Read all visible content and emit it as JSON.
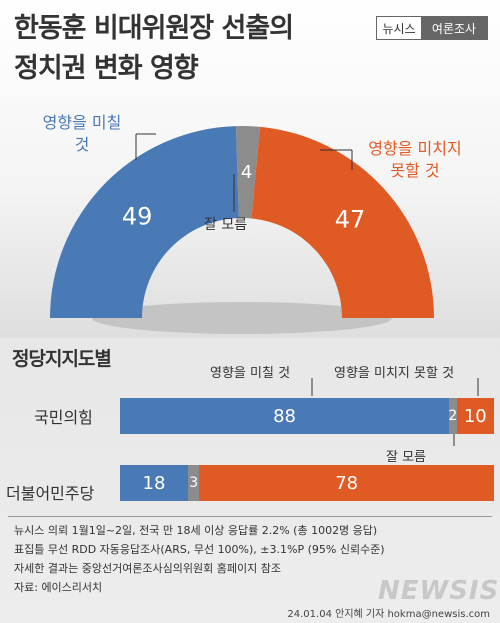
{
  "title": {
    "line1": "한동훈 비대위원장 선출의",
    "line2": "정치권 변화 영향"
  },
  "badge": {
    "left": "뉴시스",
    "right": "여론조사"
  },
  "colors": {
    "blue": "#4a7ab5",
    "orange": "#e05a24",
    "gray": "#8c8c8c"
  },
  "chart_data": [
    {
      "type": "pie",
      "categories": [
        "영향을 미칠 것",
        "잘 모름",
        "영향을 미치지 못할 것"
      ],
      "values": [
        49,
        4,
        47
      ],
      "labels": {
        "affect": "영향을 미칠 것",
        "unsure": "잘 모름",
        "noaffect": "영향을 미치지 못할 것"
      },
      "value_labels": [
        "49",
        "4",
        "47"
      ]
    },
    {
      "type": "bar",
      "title": "정당지지도별",
      "categories": [
        "국민의힘",
        "더불어민주당"
      ],
      "series": [
        {
          "name": "영향을 미칠 것",
          "values": [
            88,
            18
          ]
        },
        {
          "name": "잘 모름",
          "values": [
            2,
            3
          ]
        },
        {
          "name": "영향을 미치지 못할 것",
          "values": [
            10,
            78
          ]
        }
      ],
      "annotations": {
        "affect": "영향을 미칠 것",
        "noaffect": "영향을 미치지 못할 것",
        "unsure": "잘 모름"
      }
    }
  ],
  "notes": [
    "뉴시스 의뢰 1월1일~2일, 전국 만 18세 이상 응답률 2.2% (총 1002명 응답)",
    "표집틀 무선 RDD 자동응답조사(ARS, 무선 100%), ±3.1%P (95% 신뢰수준)",
    "자세한 결과는 중앙선거여론조사심의위원회 홈페이지 참조",
    "자료:  에이스리서치"
  ],
  "footer": "24.01.04 안지혜 기자  hokma@newsis.com",
  "logo": "NEWSIS"
}
